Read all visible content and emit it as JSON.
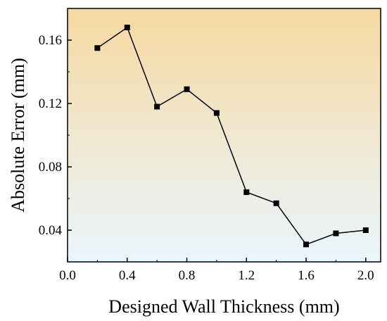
{
  "chart_data": {
    "type": "line",
    "title": "",
    "xlabel": "Designed Wall Thickness (mm)",
    "ylabel": "Absolute Error (mm)",
    "xlim": [
      0.0,
      2.1
    ],
    "ylim": [
      0.02,
      0.18
    ],
    "xticks": [
      0.0,
      0.4,
      0.8,
      1.2,
      1.6,
      2.0
    ],
    "xtick_labels": [
      "0.0",
      "0.4",
      "0.8",
      "1.2",
      "1.6",
      "2.0"
    ],
    "yticks": [
      0.04,
      0.08,
      0.12,
      0.16
    ],
    "ytick_labels": [
      "0.04",
      "0.08",
      "0.12",
      "0.16"
    ],
    "grid": false,
    "legend": "none",
    "background_gradient": [
      "#f6d9a0",
      "#eaf6fe"
    ],
    "line_color": "#000000",
    "marker": "square",
    "series": [
      {
        "x": [
          0.2,
          0.4,
          0.6,
          0.8,
          1.0,
          1.2,
          1.4,
          1.6,
          1.8,
          2.0
        ],
        "y": [
          0.155,
          0.168,
          0.118,
          0.129,
          0.114,
          0.064,
          0.057,
          0.031,
          0.038,
          0.04
        ]
      }
    ]
  }
}
